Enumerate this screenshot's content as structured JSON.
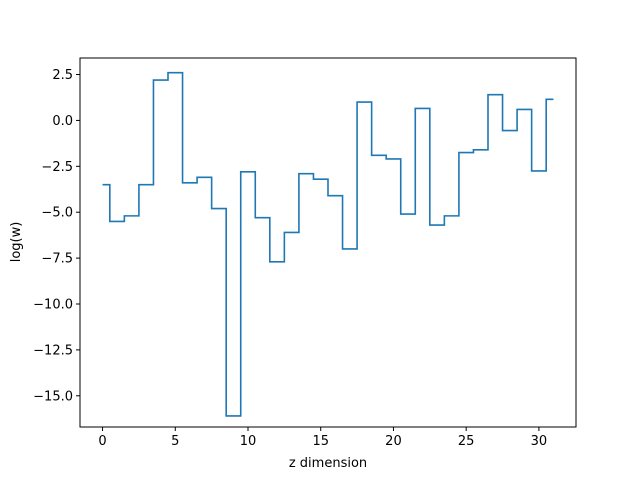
{
  "chart_data": {
    "type": "line",
    "drawstyle": "steps-mid",
    "title": "",
    "xlabel": "z dimension",
    "ylabel": "log(w)",
    "xlim": [
      -1.55,
      32.55
    ],
    "ylim": [
      -16.7,
      3.4
    ],
    "xticks": [
      0,
      5,
      10,
      15,
      20,
      25,
      30
    ],
    "yticks": [
      2.5,
      0.0,
      -2.5,
      -5.0,
      -7.5,
      -10.0,
      -12.5,
      -15.0
    ],
    "ytick_labels": [
      "2.5",
      "0.0",
      "−2.5",
      "−5.0",
      "−7.5",
      "−10.0",
      "−12.5",
      "−15.0"
    ],
    "grid": false,
    "line_color": "#1f77b4",
    "series": [
      {
        "x": [
          0,
          1,
          2,
          3,
          4,
          5,
          6,
          7,
          8,
          9,
          10,
          11,
          12,
          13,
          14,
          15,
          16,
          17,
          18,
          19,
          20,
          21,
          22,
          23,
          24,
          25,
          26,
          27,
          28,
          29,
          30,
          31
        ],
        "values": [
          -3.5,
          -5.5,
          -5.2,
          -3.5,
          2.2,
          2.6,
          -3.4,
          -3.1,
          -4.8,
          -16.1,
          -2.8,
          -5.3,
          -7.7,
          -6.1,
          -2.9,
          -3.2,
          -4.1,
          -7.0,
          1.0,
          -1.9,
          -2.1,
          -5.1,
          0.65,
          -5.7,
          -5.2,
          -1.75,
          -1.6,
          1.4,
          -0.55,
          0.6,
          -2.75,
          1.15
        ]
      }
    ]
  }
}
